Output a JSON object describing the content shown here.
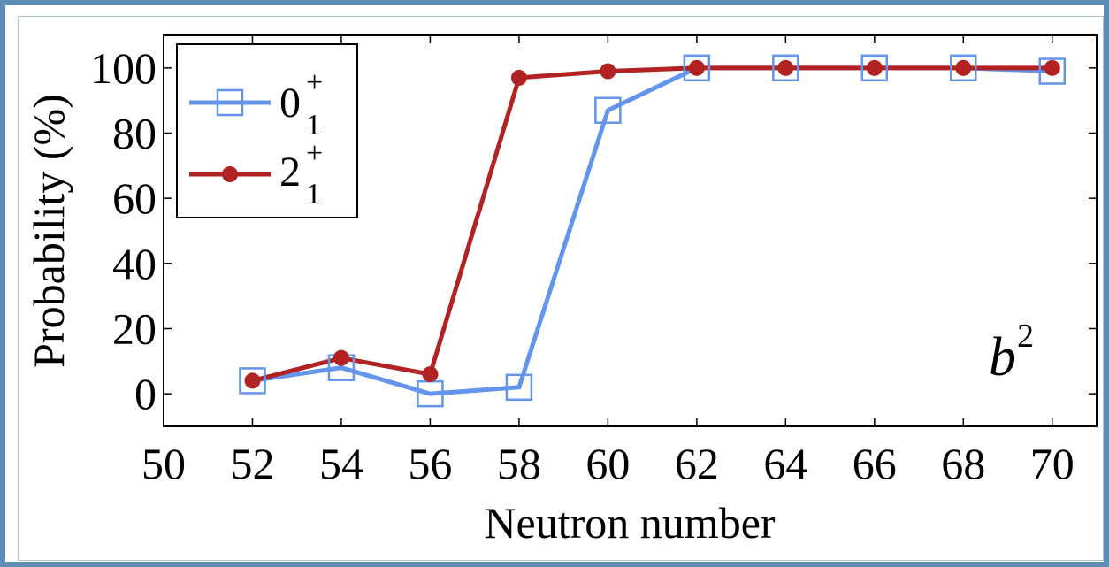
{
  "chart_data": {
    "type": "line",
    "title": "",
    "xlabel": "Neutron number",
    "ylabel": "Probability (%)",
    "xlim": [
      50,
      71
    ],
    "ylim": [
      -10,
      110
    ],
    "x_ticks": [
      50,
      52,
      54,
      56,
      58,
      60,
      62,
      64,
      66,
      68,
      70
    ],
    "y_ticks": [
      0,
      20,
      40,
      60,
      80,
      100
    ],
    "grid": false,
    "legend_position": "top-left",
    "annotation": {
      "base": "b",
      "sup": "2",
      "position": "lower-right"
    },
    "series": [
      {
        "name_base": "0",
        "name_sup": "+",
        "name_sub": "1",
        "color": "#6495ed",
        "marker": "open-square",
        "x": [
          52,
          54,
          56,
          58,
          60,
          62,
          64,
          66,
          68,
          70
        ],
        "y": [
          4,
          8,
          0,
          2,
          87,
          100,
          100,
          100,
          100,
          99
        ]
      },
      {
        "name_base": "2",
        "name_sup": "+",
        "name_sub": "1",
        "color": "#b22222",
        "marker": "filled-circle",
        "x": [
          52,
          54,
          56,
          58,
          60,
          62,
          64,
          66,
          68,
          70
        ],
        "y": [
          4,
          11,
          6,
          97,
          99,
          100,
          100,
          100,
          100,
          100
        ]
      }
    ]
  }
}
